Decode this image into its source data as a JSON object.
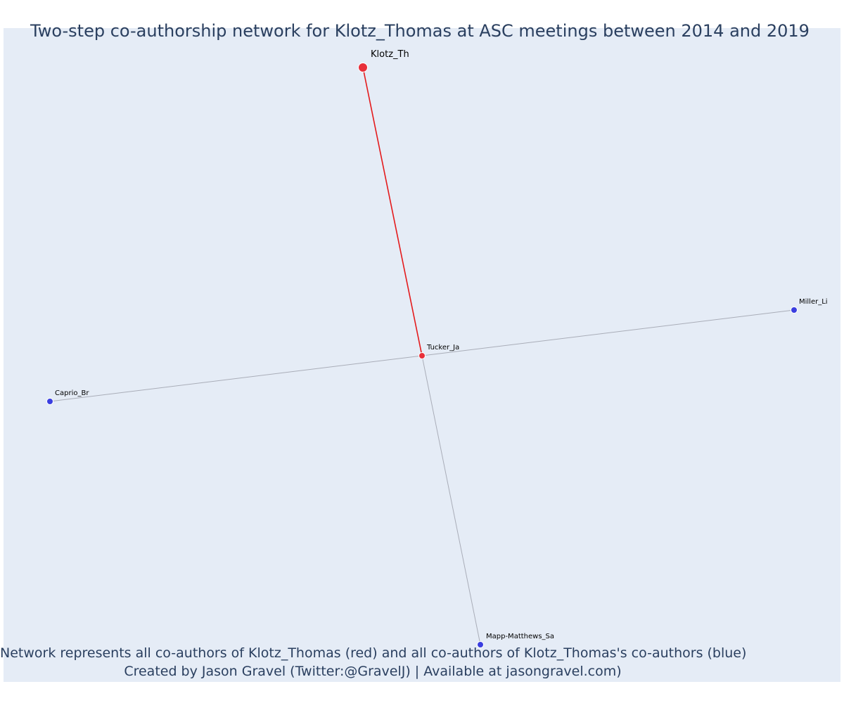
{
  "title": "Two-step co-authorship network for Klotz_Thomas at ASC meetings between 2014 and 2019",
  "caption": {
    "line1": "Network represents all co-authors of Klotz_Thomas (red) and all co-authors of Klotz_Thomas's co-authors (blue)",
    "line2": "Created by Jason Gravel (Twitter:@GravelJ) | Available at jasongravel.com)"
  },
  "colors": {
    "background": "#e5ecf6",
    "red_node": "#e8303a",
    "blue_node": "#3a3ee0",
    "red_edge": "#e41a1c",
    "grey_edge": "#a9adb8",
    "text": "#2a3f5f"
  },
  "nodes": [
    {
      "id": "Klotz_Th",
      "label": "Klotz_Th",
      "group": "focal"
    },
    {
      "id": "Tucker_Ja",
      "label": "Tucker_Ja",
      "group": "coauthor"
    },
    {
      "id": "Miller_Li",
      "label": "Miller_Li",
      "group": "second_step"
    },
    {
      "id": "Caprio_Br",
      "label": "Caprio_Br",
      "group": "second_step"
    },
    {
      "id": "Mapp-Matthews_Sa",
      "label": "Mapp-Matthews_Sa",
      "group": "second_step"
    }
  ],
  "edges": [
    {
      "source": "Klotz_Th",
      "target": "Tucker_Ja",
      "type": "direct"
    },
    {
      "source": "Tucker_Ja",
      "target": "Miller_Li",
      "type": "indirect"
    },
    {
      "source": "Tucker_Ja",
      "target": "Caprio_Br",
      "type": "indirect"
    },
    {
      "source": "Tucker_Ja",
      "target": "Mapp-Matthews_Sa",
      "type": "indirect"
    }
  ]
}
